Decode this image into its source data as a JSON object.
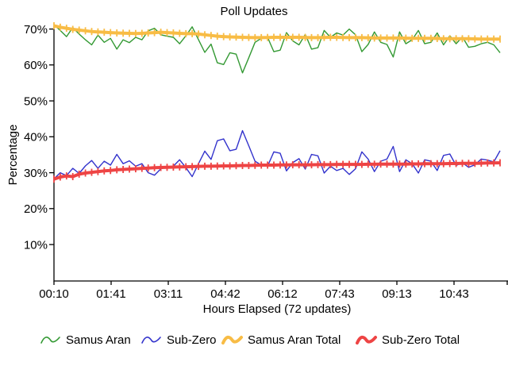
{
  "title": "Poll Updates",
  "y_axis": {
    "label": "Percentage",
    "ticks": [
      "70%",
      "60%",
      "50%",
      "40%",
      "30%",
      "20%",
      "10%"
    ]
  },
  "x_axis": {
    "label": "Hours Elapsed (72 updates)",
    "ticks": [
      "00:10",
      "01:41",
      "03:11",
      "04:42",
      "06:12",
      "07:43",
      "09:13",
      "10:43"
    ]
  },
  "legend": [
    {
      "label": "Samus Aran",
      "color": "#339933",
      "thick": false
    },
    {
      "label": "Sub-Zero",
      "color": "#3333CC",
      "thick": false
    },
    {
      "label": "Samus Aran Total",
      "color": "#F8BC45",
      "thick": true
    },
    {
      "label": "Sub-Zero Total",
      "color": "#EE4444",
      "thick": true
    }
  ],
  "chart_data": {
    "type": "line",
    "title": "Poll Updates",
    "xlabel": "Hours Elapsed (72 updates)",
    "ylabel": "Percentage",
    "ylim": [
      0,
      72
    ],
    "yticks": [
      10,
      20,
      30,
      40,
      50,
      60,
      70
    ],
    "x_tick_labels": [
      "00:10",
      "01:41",
      "03:11",
      "04:42",
      "06:12",
      "07:43",
      "09:13",
      "10:43"
    ],
    "n_points": 72,
    "legend_position": "bottom",
    "grid": false,
    "series": [
      {
        "name": "Samus Aran",
        "color": "#339933",
        "width": 1.4,
        "values": [
          71.2,
          69.6,
          67.9,
          70.4,
          68.6,
          67.0,
          65.6,
          68.3,
          66.3,
          67.4,
          64.4,
          67.0,
          66.2,
          67.7,
          67.0,
          69.5,
          70.2,
          68.4,
          68.0,
          67.7,
          65.9,
          68.1,
          70.6,
          67.0,
          63.5,
          65.8,
          60.6,
          60.1,
          63.4,
          63.0,
          57.8,
          62.0,
          66.3,
          67.4,
          67.7,
          63.7,
          64.1,
          69.0,
          66.7,
          65.6,
          68.5,
          64.4,
          64.8,
          69.6,
          67.7,
          68.9,
          68.3,
          70.0,
          68.4,
          63.7,
          65.7,
          69.2,
          66.3,
          65.7,
          62.2,
          69.2,
          65.9,
          67.0,
          69.6,
          65.9,
          66.3,
          68.9,
          65.6,
          68.1,
          65.9,
          67.8,
          64.9,
          65.2,
          65.9,
          66.3,
          65.6,
          63.4
        ]
      },
      {
        "name": "Sub-Zero",
        "color": "#3333CC",
        "width": 1.4,
        "values": [
          28.3,
          30.0,
          29.2,
          31.2,
          29.8,
          31.9,
          33.4,
          31.2,
          33.2,
          32.1,
          35.1,
          32.5,
          33.3,
          31.8,
          32.5,
          30.0,
          29.3,
          31.1,
          31.5,
          31.8,
          33.6,
          31.4,
          28.9,
          32.5,
          36.0,
          33.7,
          38.9,
          39.4,
          36.1,
          36.5,
          41.7,
          37.5,
          33.2,
          32.1,
          31.8,
          35.8,
          35.4,
          30.5,
          32.8,
          33.9,
          31.0,
          35.1,
          34.7,
          29.9,
          31.8,
          30.6,
          31.2,
          29.5,
          31.1,
          35.8,
          33.8,
          30.3,
          33.2,
          33.8,
          37.3,
          30.3,
          33.6,
          32.5,
          29.9,
          33.6,
          33.2,
          30.6,
          34.8,
          35.2,
          32.0,
          32.8,
          31.5,
          32.2,
          33.8,
          33.5,
          33.0,
          36.1
        ]
      },
      {
        "name": "Samus Aran Total",
        "color": "#F8BC45",
        "width": 4,
        "values": [
          70.9,
          70.5,
          70.2,
          69.9,
          69.7,
          69.5,
          69.3,
          69.2,
          69.1,
          69.0,
          68.9,
          68.85,
          68.8,
          68.75,
          68.8,
          68.9,
          69.0,
          69.1,
          69.0,
          68.9,
          68.8,
          68.7,
          68.7,
          68.6,
          68.4,
          68.2,
          68.0,
          67.9,
          67.8,
          67.75,
          67.7,
          67.65,
          67.6,
          67.6,
          67.65,
          67.7,
          67.7,
          67.7,
          67.7,
          67.7,
          67.65,
          67.6,
          67.6,
          67.65,
          67.7,
          67.7,
          67.65,
          67.6,
          67.6,
          67.6,
          67.55,
          67.5,
          67.5,
          67.5,
          67.5,
          67.5,
          67.45,
          67.4,
          67.4,
          67.4,
          67.4,
          67.35,
          67.3,
          67.3,
          67.3,
          67.3,
          67.3,
          67.25,
          67.2,
          67.2,
          67.2,
          67.2
        ]
      },
      {
        "name": "Sub-Zero Total",
        "color": "#EE4444",
        "width": 4,
        "values": [
          28.2,
          28.8,
          29.1,
          28.9,
          29.6,
          29.9,
          30.1,
          30.3,
          30.5,
          30.6,
          30.8,
          30.9,
          31.0,
          31.1,
          31.2,
          31.3,
          31.4,
          31.45,
          31.5,
          31.55,
          31.6,
          31.65,
          31.7,
          31.75,
          31.8,
          31.8,
          31.85,
          31.9,
          31.9,
          31.95,
          32.0,
          32.0,
          32.05,
          32.1,
          32.1,
          32.1,
          32.15,
          32.15,
          32.2,
          32.2,
          32.2,
          32.2,
          32.25,
          32.25,
          32.25,
          32.3,
          32.3,
          32.3,
          32.3,
          32.3,
          32.35,
          32.35,
          32.4,
          32.4,
          32.4,
          32.4,
          32.4,
          32.45,
          32.45,
          32.5,
          32.5,
          32.5,
          32.5,
          32.55,
          32.55,
          32.6,
          32.6,
          32.6,
          32.65,
          32.7,
          32.7,
          32.75
        ]
      }
    ]
  }
}
